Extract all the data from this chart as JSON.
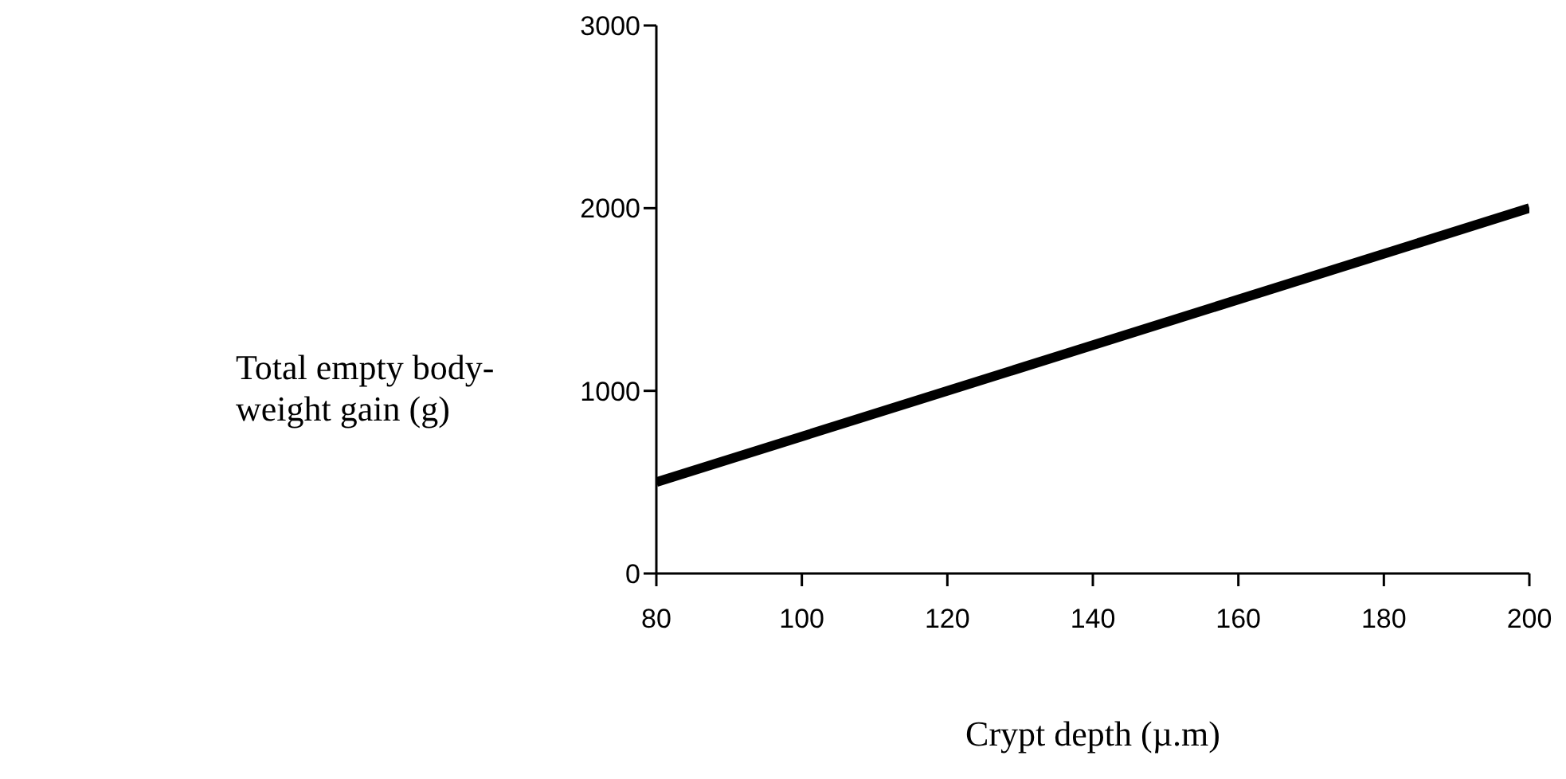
{
  "chart_data": {
    "type": "line",
    "xlabel": "Crypt depth (µ.m)",
    "ylabel": "Total empty body-weight gain (g)",
    "x": [
      80,
      200
    ],
    "series": [
      {
        "color": "#000000",
        "values": [
          500,
          2000
        ]
      }
    ],
    "xlim": [
      80,
      200
    ],
    "xticks": [
      80,
      100,
      120,
      140,
      160,
      180,
      200
    ],
    "ylim": [
      0,
      3000
    ],
    "yticks": [
      0,
      1000,
      2000,
      3000
    ],
    "grid": false,
    "legend": false,
    "marker": "none",
    "line_style": "solid"
  }
}
